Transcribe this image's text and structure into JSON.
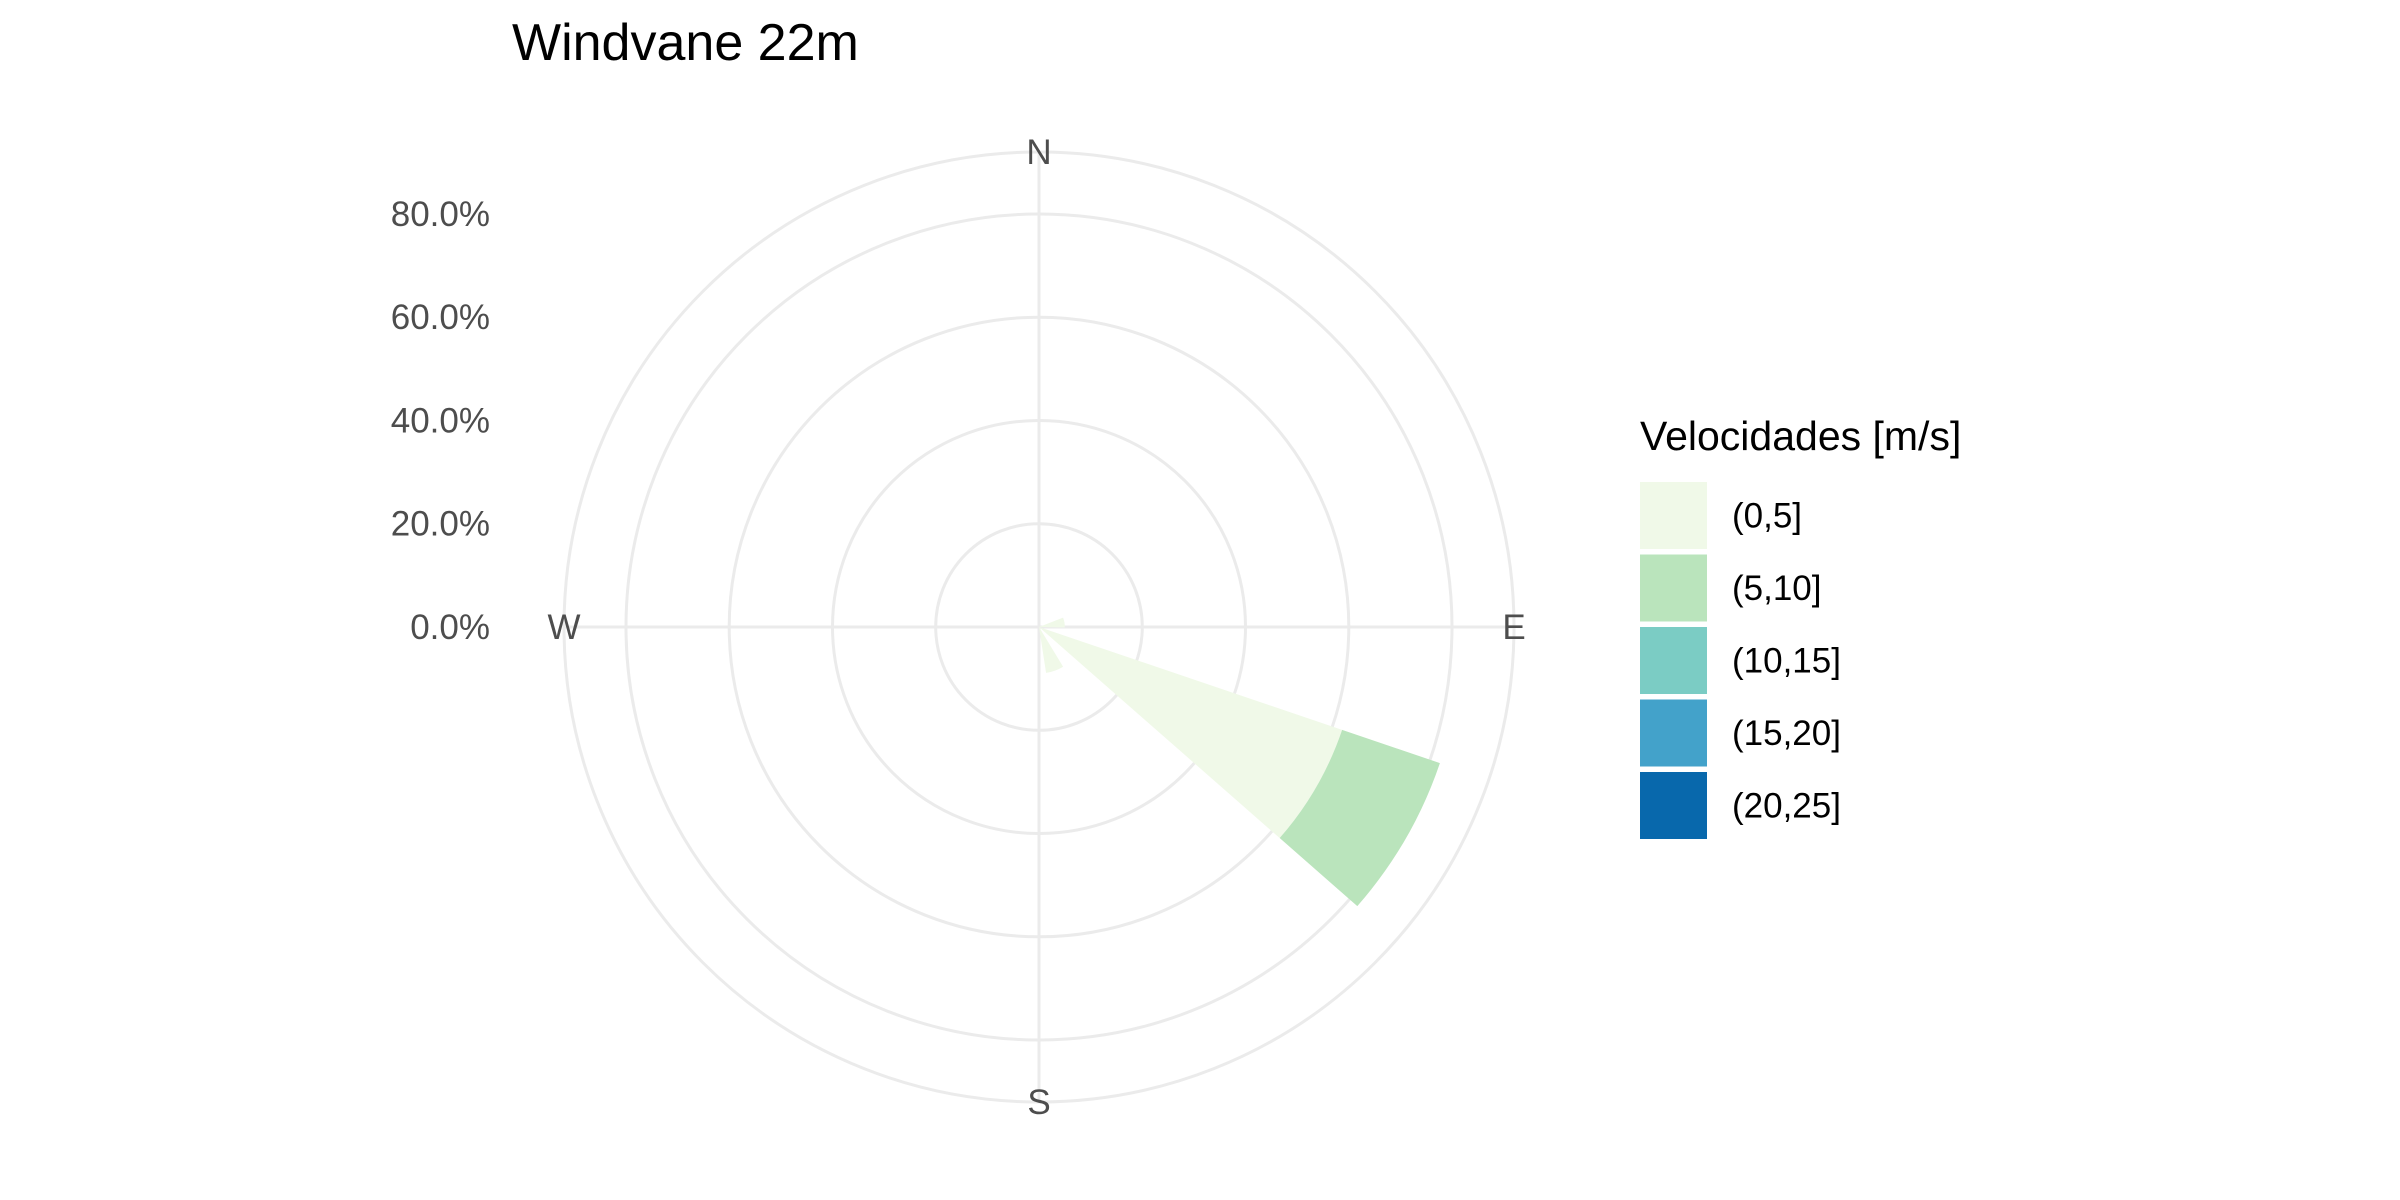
{
  "chart_data": {
    "type": "wind-rose",
    "title": "Windvane 22m",
    "radial_axis": {
      "range": [
        0,
        0.92
      ],
      "ticks": [
        0,
        0.2,
        0.4,
        0.6,
        0.8
      ],
      "tick_labels": [
        "0.0%",
        "20.0%",
        "40.0%",
        "60.0%",
        "80.0%"
      ]
    },
    "directions": [
      "N",
      "E",
      "S",
      "W"
    ],
    "legend": {
      "title": "Velocidades [m/s]",
      "placement": "right"
    },
    "bins": [
      {
        "label": "(0,5]",
        "color": "#f0f9e8"
      },
      {
        "label": "(5,10]",
        "color": "#bae4bc"
      },
      {
        "label": "(10,15]",
        "color": "#7bccc4"
      },
      {
        "label": "(15,20]",
        "color": "#43a2ca"
      },
      {
        "label": "(20,25]",
        "color": "#0868ac"
      }
    ],
    "sector_width_deg": 22.5,
    "sectors": [
      {
        "direction_deg": 80,
        "values": [
          0.05,
          0,
          0,
          0,
          0
        ]
      },
      {
        "direction_deg": 120,
        "values": [
          0.62,
          0.2,
          0,
          0,
          0
        ]
      },
      {
        "direction_deg": 160,
        "values": [
          0.09,
          0,
          0,
          0,
          0
        ]
      }
    ]
  }
}
